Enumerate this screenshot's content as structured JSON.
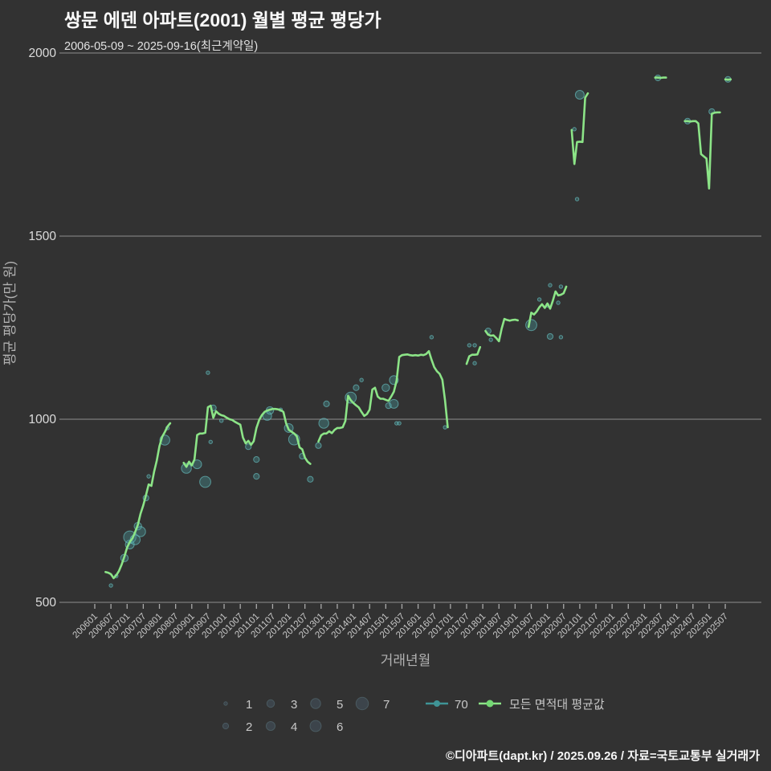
{
  "header": {
    "title": "쌍문 에덴 아파트(2001) 월별 평균 평당가",
    "subtitle": "2006-05-09 ~ 2025-09-16(최근계약일)"
  },
  "footer": {
    "credit": "©디아파트(dapt.kr) / 2025.09.26 / 자료=국토교통부 실거래가"
  },
  "chart_data": {
    "type": "line+scatter",
    "title": "쌍문 에덴 아파트(2001) 월별 평균 평당가",
    "xlabel": "거래년월",
    "ylabel": "평균 평당가(만 원)",
    "ylim": [
      500,
      2000
    ],
    "yticks": [
      500,
      1000,
      1500,
      2000
    ],
    "xticks": [
      "200601",
      "200607",
      "200701",
      "200707",
      "200801",
      "200807",
      "200901",
      "200907",
      "201001",
      "201007",
      "201101",
      "201107",
      "201201",
      "201207",
      "201301",
      "201307",
      "201401",
      "201407",
      "201501",
      "201507",
      "201601",
      "201607",
      "201701",
      "201707",
      "201801",
      "201807",
      "201901",
      "201907",
      "202001",
      "202007",
      "202101",
      "202107",
      "202201",
      "202207",
      "202301",
      "202307",
      "202401",
      "202407",
      "202501",
      "202507"
    ],
    "grid": true,
    "legend_position": "bottom",
    "colors": {
      "background": "#323232",
      "line": "#8ce487",
      "line_dot": "#74d874",
      "bubble_fill": "rgba(70,150,152,0.38)",
      "bubble_stroke": "rgba(110,205,205,0.6)",
      "teal": "#3f9496",
      "grid": "#8f8f8f",
      "tick": "#aaaaaa",
      "tick_label": "#c8c8c8",
      "ytick_label": "#dcdcdc",
      "axis_title": "#b2b2b2",
      "legend_circle_fill": "#3c444b",
      "legend_circle_stroke": "#4a5a60"
    },
    "legend": {
      "sizes_row1": [
        1,
        3,
        5,
        7
      ],
      "sizes_row2": [
        2,
        4,
        6
      ],
      "bubble_series_label": "70",
      "line_series_label": "모든 면적대 평균값"
    },
    "line_segments": [
      [
        [
          "200605",
          583
        ],
        [
          "200606",
          581
        ],
        [
          "200607",
          577
        ],
        [
          "200608",
          566
        ],
        [
          "200609",
          574
        ],
        [
          "200610",
          586
        ],
        [
          "200611",
          604
        ],
        [
          "200612",
          625
        ],
        [
          "200701",
          650
        ],
        [
          "200702",
          665
        ],
        [
          "200703",
          675
        ],
        [
          "200704",
          692
        ],
        [
          "200705",
          712
        ],
        [
          "200706",
          742
        ],
        [
          "200707",
          765
        ],
        [
          "200708",
          792
        ],
        [
          "200709",
          822
        ],
        [
          "200710",
          818
        ],
        [
          "200711",
          856
        ],
        [
          "200712",
          887
        ],
        [
          "200801",
          926
        ],
        [
          "200802",
          952
        ],
        [
          "200803",
          965
        ],
        [
          "200804",
          980
        ],
        [
          "200805",
          989
        ]
      ],
      [
        [
          "200810",
          881
        ],
        [
          "200811",
          870
        ],
        [
          "200812",
          884
        ],
        [
          "200901",
          874
        ],
        [
          "200902",
          890
        ],
        [
          "200903",
          957
        ],
        [
          "200904",
          961
        ],
        [
          "200905",
          961
        ],
        [
          "200906",
          963
        ],
        [
          "200907",
          1033
        ],
        [
          "200908",
          1037
        ],
        [
          "200909",
          1004
        ],
        [
          "200910",
          1022
        ],
        [
          "200911",
          1015
        ],
        [
          "200912",
          1011
        ],
        [
          "201001",
          1009
        ],
        [
          "201002",
          1004
        ],
        [
          "201003",
          1000
        ],
        [
          "201004",
          998
        ],
        [
          "201005",
          993
        ],
        [
          "201006",
          989
        ],
        [
          "201007",
          985
        ],
        [
          "201008",
          950
        ],
        [
          "201009",
          934
        ],
        [
          "201010",
          941
        ],
        [
          "201011",
          930
        ],
        [
          "201012",
          940
        ],
        [
          "201101",
          976
        ],
        [
          "201102",
          998
        ],
        [
          "201103",
          1011
        ],
        [
          "201104",
          1020
        ],
        [
          "201105",
          1024
        ],
        [
          "201106",
          1026
        ],
        [
          "201107",
          1028
        ],
        [
          "201108",
          1028
        ],
        [
          "201109",
          1027
        ],
        [
          "201110",
          1025
        ],
        [
          "201111",
          1020
        ],
        [
          "201112",
          989
        ],
        [
          "201201",
          971
        ],
        [
          "201202",
          966
        ],
        [
          "201203",
          961
        ],
        [
          "201204",
          953
        ],
        [
          "201205",
          923
        ],
        [
          "201206",
          918
        ],
        [
          "201207",
          895
        ],
        [
          "201208",
          884
        ],
        [
          "201209",
          878
        ]
      ],
      [
        [
          "201212",
          939
        ],
        [
          "201301",
          956
        ],
        [
          "201302",
          961
        ],
        [
          "201303",
          961
        ],
        [
          "201304",
          967
        ],
        [
          "201305",
          962
        ],
        [
          "201306",
          971
        ],
        [
          "201307",
          976
        ],
        [
          "201308",
          976
        ],
        [
          "201309",
          978
        ],
        [
          "201310",
          995
        ],
        [
          "201311",
          1064
        ],
        [
          "201312",
          1052
        ],
        [
          "201401",
          1044
        ],
        [
          "201402",
          1038
        ],
        [
          "201403",
          1032
        ],
        [
          "201404",
          1020
        ],
        [
          "201405",
          1009
        ],
        [
          "201406",
          1014
        ],
        [
          "201407",
          1026
        ],
        [
          "201408",
          1081
        ],
        [
          "201409",
          1086
        ],
        [
          "201410",
          1062
        ],
        [
          "201411",
          1056
        ],
        [
          "201412",
          1056
        ],
        [
          "201501",
          1053
        ],
        [
          "201502",
          1050
        ],
        [
          "201503",
          1062
        ],
        [
          "201504",
          1075
        ],
        [
          "201505",
          1105
        ],
        [
          "201506",
          1170
        ],
        [
          "201507",
          1175
        ],
        [
          "201508",
          1176
        ],
        [
          "201509",
          1177
        ],
        [
          "201510",
          1175
        ],
        [
          "201511",
          1174
        ],
        [
          "201512",
          1175
        ],
        [
          "201601",
          1174
        ],
        [
          "201602",
          1176
        ],
        [
          "201603",
          1175
        ],
        [
          "201604",
          1178
        ],
        [
          "201605",
          1186
        ],
        [
          "201606",
          1162
        ],
        [
          "201607",
          1142
        ],
        [
          "201608",
          1131
        ],
        [
          "201609",
          1124
        ],
        [
          "201610",
          1108
        ],
        [
          "201611",
          1052
        ],
        [
          "201612",
          978
        ]
      ],
      [
        [
          "201707",
          1151
        ],
        [
          "201708",
          1172
        ],
        [
          "201709",
          1176
        ],
        [
          "201710",
          1176
        ],
        [
          "201711",
          1177
        ],
        [
          "201712",
          1197
        ]
      ],
      [
        [
          "201802",
          1241
        ],
        [
          "201803",
          1231
        ],
        [
          "201804",
          1228
        ],
        [
          "201805",
          1229
        ],
        [
          "201806",
          1222
        ],
        [
          "201807",
          1213
        ],
        [
          "201808",
          1247
        ],
        [
          "201809",
          1274
        ],
        [
          "201810",
          1271
        ],
        [
          "201811",
          1269
        ],
        [
          "201812",
          1271
        ],
        [
          "201901",
          1272
        ],
        [
          "201902",
          1270
        ]
      ],
      [
        [
          "201906",
          1252
        ],
        [
          "201907",
          1291
        ],
        [
          "201908",
          1286
        ],
        [
          "201909",
          1294
        ],
        [
          "201910",
          1306
        ],
        [
          "201911",
          1314
        ],
        [
          "201912",
          1304
        ],
        [
          "202001",
          1316
        ],
        [
          "202002",
          1302
        ],
        [
          "202003",
          1324
        ],
        [
          "202004",
          1349
        ],
        [
          "202005",
          1338
        ],
        [
          "202006",
          1340
        ],
        [
          "202007",
          1344
        ],
        [
          "202008",
          1362
        ]
      ],
      [
        [
          "202010",
          1790
        ],
        [
          "202011",
          1697
        ],
        [
          "202012",
          1757
        ],
        [
          "202101",
          1758
        ],
        [
          "202102",
          1757
        ],
        [
          "202103",
          1878
        ],
        [
          "202104",
          1890
        ]
      ],
      [
        [
          "202305",
          1933
        ],
        [
          "202306",
          1933
        ],
        [
          "202307",
          1932
        ],
        [
          "202308",
          1933
        ],
        [
          "202309",
          1933
        ]
      ],
      [
        [
          "202404",
          1814
        ],
        [
          "202405",
          1814
        ],
        [
          "202406",
          1813
        ],
        [
          "202407",
          1814
        ],
        [
          "202408",
          1814
        ],
        [
          "202409",
          1808
        ],
        [
          "202410",
          1724
        ],
        [
          "202411",
          1718
        ],
        [
          "202412",
          1712
        ],
        [
          "202501",
          1630
        ],
        [
          "202502",
          1834
        ],
        [
          "202503",
          1837
        ],
        [
          "202504",
          1838
        ],
        [
          "202505",
          1838
        ]
      ],
      [
        [
          "202507",
          1928
        ],
        [
          "202508",
          1927
        ],
        [
          "202509",
          1928
        ]
      ]
    ],
    "bubbles": [
      [
        "200607",
        546,
        1
      ],
      [
        "200609",
        572,
        1
      ],
      [
        "200612",
        621,
        3
      ],
      [
        "200702",
        658,
        4
      ],
      [
        "200702",
        678,
        7
      ],
      [
        "200704",
        671,
        5
      ],
      [
        "200705",
        708,
        3
      ],
      [
        "200706",
        693,
        5
      ],
      [
        "200708",
        785,
        2
      ],
      [
        "200709",
        844,
        1
      ],
      [
        "200803",
        943,
        5
      ],
      [
        "200804",
        976,
        1
      ],
      [
        "200811",
        866,
        5
      ],
      [
        "200903",
        877,
        4
      ],
      [
        "200906",
        829,
        6
      ],
      [
        "200907",
        1127,
        1
      ],
      [
        "200908",
        938,
        1
      ],
      [
        "200909",
        1031,
        2
      ],
      [
        "200912",
        996,
        1
      ],
      [
        "201010",
        925,
        2
      ],
      [
        "201101",
        890,
        2
      ],
      [
        "201101",
        844,
        2
      ],
      [
        "201105",
        1009,
        4
      ],
      [
        "201106",
        1024,
        3
      ],
      [
        "201110",
        1026,
        1
      ],
      [
        "201201",
        976,
        4
      ],
      [
        "201203",
        945,
        6
      ],
      [
        "201206",
        899,
        2
      ],
      [
        "201209",
        836,
        2
      ],
      [
        "201212",
        928,
        2
      ],
      [
        "201302",
        989,
        5
      ],
      [
        "201303",
        1042,
        2
      ],
      [
        "201312",
        1059,
        6
      ],
      [
        "201402",
        1086,
        2
      ],
      [
        "201404",
        1107,
        1
      ],
      [
        "201501",
        1086,
        3
      ],
      [
        "201502",
        1037,
        2
      ],
      [
        "201504",
        1107,
        4
      ],
      [
        "201504",
        1042,
        4
      ],
      [
        "201505",
        989,
        1
      ],
      [
        "201506",
        989,
        1
      ],
      [
        "201606",
        1224,
        1
      ],
      [
        "201611",
        978,
        1
      ],
      [
        "201708",
        1202,
        1
      ],
      [
        "201710",
        1202,
        1
      ],
      [
        "201710",
        1153,
        1
      ],
      [
        "201803",
        1241,
        2
      ],
      [
        "201804",
        1217,
        1
      ],
      [
        "201907",
        1257,
        6
      ],
      [
        "201910",
        1327,
        1
      ],
      [
        "202001",
        1311,
        1
      ],
      [
        "202002",
        1366,
        1
      ],
      [
        "202002",
        1226,
        2
      ],
      [
        "202005",
        1318,
        1
      ],
      [
        "202006",
        1362,
        1
      ],
      [
        "202006",
        1224,
        1
      ],
      [
        "202011",
        1792,
        1
      ],
      [
        "202012",
        1601,
        1
      ],
      [
        "202101",
        1886,
        4
      ],
      [
        "202306",
        1932,
        2
      ],
      [
        "202405",
        1814,
        2
      ],
      [
        "202502",
        1840,
        2
      ],
      [
        "202508",
        1928,
        2
      ]
    ]
  }
}
